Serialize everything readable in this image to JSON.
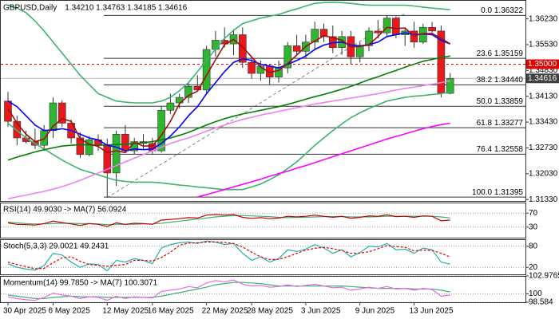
{
  "chart_data": [
    {
      "type": "candlestick",
      "title": "GBPUSD,Daily",
      "subtitle": "1.34210 1.34763 1.34185 1.34616",
      "categories": [
        "30 Apr 2025",
        null,
        null,
        null,
        null,
        "6 May 2025",
        null,
        null,
        null,
        null,
        null,
        "12 May 2025",
        null,
        null,
        null,
        null,
        "16 May 2025",
        null,
        null,
        null,
        null,
        null,
        "22 May 2025",
        null,
        null,
        null,
        null,
        "28 May 2025",
        null,
        null,
        null,
        null,
        null,
        "3 Jun 2025",
        null,
        null,
        null,
        null,
        null,
        "9 Jun 2025",
        null,
        null,
        null,
        null,
        null,
        "13 Jun 2025",
        null,
        null,
        null,
        null
      ],
      "open": [
        1.34,
        1.3345,
        1.33,
        1.329,
        1.328,
        1.332,
        1.3395,
        1.334,
        1.33,
        1.3255,
        1.3295,
        1.328,
        1.3205,
        1.331,
        1.3265,
        1.329,
        1.3285,
        1.3265,
        1.3375,
        1.3395,
        1.341,
        1.344,
        1.343,
        1.354,
        1.3565,
        1.3555,
        1.358,
        1.3505,
        1.3475,
        1.3495,
        1.3465,
        1.349,
        1.355,
        1.3535,
        1.356,
        1.3595,
        1.3575,
        1.3545,
        1.3575,
        1.352,
        1.355,
        1.359,
        1.3585,
        1.3625,
        1.358,
        1.359,
        1.356,
        1.36,
        1.359,
        1.3421
      ],
      "high": [
        1.3425,
        1.336,
        1.332,
        1.3325,
        1.3335,
        1.341,
        1.3402,
        1.335,
        1.3315,
        1.3305,
        1.331,
        1.3298,
        1.332,
        1.3335,
        1.33,
        1.331,
        1.33,
        1.3385,
        1.342,
        1.342,
        1.345,
        1.347,
        1.355,
        1.359,
        1.36,
        1.3595,
        1.36,
        1.352,
        1.351,
        1.35,
        1.351,
        1.356,
        1.358,
        1.358,
        1.3615,
        1.361,
        1.3605,
        1.359,
        1.359,
        1.356,
        1.36,
        1.362,
        1.36322,
        1.363,
        1.36,
        1.3615,
        1.361,
        1.3615,
        1.3605,
        1.34763
      ],
      "low": [
        1.333,
        1.328,
        1.3285,
        1.327,
        1.3265,
        1.33,
        1.333,
        1.3285,
        1.3245,
        1.325,
        1.3265,
        1.31395,
        1.317,
        1.326,
        1.3255,
        1.327,
        1.3255,
        1.326,
        1.3365,
        1.338,
        1.3395,
        1.3425,
        1.342,
        1.352,
        1.3545,
        1.3525,
        1.349,
        1.346,
        1.3455,
        1.3445,
        1.345,
        1.3475,
        1.3525,
        1.3515,
        1.354,
        1.356,
        1.353,
        1.3525,
        1.35,
        1.3505,
        1.3535,
        1.357,
        1.3575,
        1.357,
        1.355,
        1.3545,
        1.3555,
        1.358,
        1.341,
        1.34185
      ],
      "close": [
        1.3345,
        1.33,
        1.329,
        1.328,
        1.332,
        1.3395,
        1.334,
        1.33,
        1.3255,
        1.3295,
        1.328,
        1.3205,
        1.331,
        1.3265,
        1.329,
        1.3285,
        1.3265,
        1.3375,
        1.3395,
        1.341,
        1.344,
        1.343,
        1.354,
        1.3565,
        1.3555,
        1.358,
        1.3505,
        1.3475,
        1.3495,
        1.3465,
        1.349,
        1.355,
        1.3535,
        1.356,
        1.3595,
        1.3575,
        1.3545,
        1.3575,
        1.352,
        1.355,
        1.359,
        1.3585,
        1.3625,
        1.358,
        1.359,
        1.356,
        1.36,
        1.359,
        1.3421,
        1.34616
      ],
      "up_color": "#2fb52f",
      "down_color": "#e8191c",
      "series": [
        {
          "color": "#3cb371",
          "values": [
            1.366,
            1.3652,
            1.364,
            1.3617,
            1.359,
            1.356,
            1.353,
            1.35,
            1.347,
            1.3445,
            1.342,
            1.341,
            1.34,
            1.3397,
            1.3395,
            1.3395,
            1.3395,
            1.34,
            1.341,
            1.3428,
            1.345,
            1.348,
            1.351,
            1.354,
            1.357,
            1.3592,
            1.361,
            1.3618,
            1.3625,
            1.363,
            1.3635,
            1.3643,
            1.365,
            1.3658,
            1.3665,
            1.3667,
            1.3668,
            1.3667,
            1.3665,
            1.3662,
            1.366,
            1.366,
            1.366,
            1.366,
            1.366,
            1.3658,
            1.3655,
            1.3652,
            1.365,
            1.3648
          ]
        },
        {
          "color": "#3cb371",
          "values": [
            1.334,
            1.332,
            1.33,
            1.3285,
            1.327,
            1.3255,
            1.324,
            1.3227,
            1.3215,
            1.3207,
            1.32,
            1.3192,
            1.3185,
            1.3182,
            1.318,
            1.318,
            1.318,
            1.3178,
            1.3175,
            1.3172,
            1.317,
            1.3167,
            1.3165,
            1.3162,
            1.316,
            1.316,
            1.316,
            1.3167,
            1.3175,
            1.3187,
            1.32,
            1.3217,
            1.3235,
            1.3257,
            1.328,
            1.33,
            1.332,
            1.3338,
            1.3355,
            1.3368,
            1.338,
            1.339,
            1.34,
            1.3405,
            1.341,
            1.3413,
            1.3415,
            1.3418,
            1.342,
            1.3425
          ]
        },
        {
          "color": "#ee82ee",
          "values": [
            1.3135,
            1.314,
            1.3145,
            1.315,
            1.3155,
            1.3161,
            1.3168,
            1.3176,
            1.3185,
            1.3195,
            1.3205,
            1.3215,
            1.3225,
            1.3235,
            1.3245,
            1.3255,
            1.3265,
            1.3275,
            1.3285,
            1.3293,
            1.33,
            1.3309,
            1.3318,
            1.3327,
            1.3335,
            1.3343,
            1.335,
            1.3356,
            1.3362,
            1.3367,
            1.3372,
            1.3377,
            1.3382,
            1.3387,
            1.3392,
            1.3396,
            1.34,
            1.3404,
            1.3408,
            1.3412,
            1.3416,
            1.342,
            1.3425,
            1.343,
            1.3434,
            1.3438,
            1.3442,
            1.3446,
            1.345,
            1.3455
          ]
        },
        {
          "color": "#ff00ff",
          "values": [
            null,
            null,
            null,
            null,
            null,
            null,
            null,
            null,
            null,
            null,
            null,
            null,
            null,
            null,
            null,
            null,
            null,
            null,
            null,
            null,
            null,
            1.314,
            1.3146,
            1.3153,
            1.316,
            1.3167,
            1.3174,
            1.3181,
            1.3188,
            1.3196,
            1.3203,
            1.321,
            1.3218,
            1.3225,
            1.3233,
            1.3241,
            1.3249,
            1.3257,
            1.3265,
            1.3273,
            1.3281,
            1.3289,
            1.3297,
            1.3304,
            1.3311,
            1.3318,
            1.3325,
            1.3331,
            1.3336,
            1.334
          ]
        },
        {
          "color": "#008000",
          "values": [
            1.324,
            1.3248,
            1.3255,
            1.3262,
            1.3268,
            1.3273,
            1.3278,
            1.328,
            1.3282,
            1.3281,
            1.328,
            1.3281,
            1.3282,
            1.3283,
            1.3285,
            1.3287,
            1.329,
            1.3295,
            1.33,
            1.3307,
            1.3315,
            1.3325,
            1.3335,
            1.3344,
            1.3352,
            1.3359,
            1.3365,
            1.337,
            1.3375,
            1.338,
            1.3385,
            1.3391,
            1.3398,
            1.3405,
            1.3412,
            1.3418,
            1.3425,
            1.3432,
            1.344,
            1.3449,
            1.3458,
            1.3466,
            1.3475,
            1.3483,
            1.3492,
            1.35,
            1.3508,
            1.3513,
            1.3518,
            1.3522
          ]
        },
        {
          "color": "#0000ff",
          "values": [
            1.34,
            1.3385,
            1.336,
            1.3335,
            1.332,
            1.3322,
            1.3325,
            1.332,
            1.331,
            1.33,
            1.3295,
            1.328,
            1.3275,
            1.3265,
            1.327,
            1.3268,
            1.327,
            1.3285,
            1.3305,
            1.333,
            1.336,
            1.3385,
            1.342,
            1.345,
            1.348,
            1.3505,
            1.3515,
            1.351,
            1.35,
            1.3495,
            1.349,
            1.35,
            1.351,
            1.3522,
            1.354,
            1.3552,
            1.3558,
            1.356,
            1.3552,
            1.355,
            1.3553,
            1.356,
            1.3575,
            1.358,
            1.3585,
            1.358,
            1.3582,
            1.358,
            1.3565,
            1.3555
          ]
        },
        {
          "color": "#a01010",
          "values": [
            1.338,
            1.334,
            1.331,
            1.329,
            1.3297,
            1.3332,
            1.3352,
            1.3345,
            1.3298,
            1.3283,
            1.3277,
            1.326,
            1.3265,
            1.326,
            1.3288,
            1.3278,
            1.3278,
            1.3307,
            1.3345,
            1.3393,
            1.3415,
            1.3427,
            1.347,
            1.3512,
            1.3553,
            1.3567,
            1.3547,
            1.352,
            1.3492,
            1.3478,
            1.3483,
            1.3502,
            1.3525,
            1.3548,
            1.3563,
            1.3577,
            1.3572,
            1.3565,
            1.3547,
            1.3548,
            1.3553,
            1.3575,
            1.36,
            1.3597,
            1.3598,
            1.3577,
            1.3583,
            1.3583,
            1.357,
            1.3555
          ]
        }
      ],
      "levels": [
        {
          "value": 1.36322,
          "label": "0.0 1.36322"
        },
        {
          "value": 1.35159,
          "label": "23.6 1.35159"
        },
        {
          "value": 1.3444,
          "label": "38.2 1.34440"
        },
        {
          "value": 1.33859,
          "label": "50.0 1.33859"
        },
        {
          "value": 1.33277,
          "label": "61.8 1.33277"
        },
        {
          "value": 1.32558,
          "label": "76.4 1.32558"
        },
        {
          "value": 1.31395,
          "label": "100.0 1.31395"
        }
      ],
      "hlines": [
        {
          "value": 1.35,
          "label": "1.35000",
          "color": "#e00000",
          "dashed": true
        },
        {
          "value": 1.34616,
          "label": "1.34616",
          "color": "#404040",
          "dashed": false
        }
      ],
      "ylim": [
        1.3129,
        1.3672
      ],
      "yticks": [
        {
          "value": 1.3623,
          "label": "1.36230"
        },
        {
          "value": 1.3553,
          "label": "1.35530"
        },
        {
          "value": 1.3483,
          "label": "1.34830"
        },
        {
          "value": 1.3413,
          "label": "1.34130"
        },
        {
          "value": 1.3343,
          "label": "1.33430"
        },
        {
          "value": 1.3273,
          "label": "1.32730"
        },
        {
          "value": 1.3203,
          "label": "1.32030"
        },
        {
          "value": 1.3133,
          "label": "1.31330"
        }
      ],
      "grid": false
    },
    {
      "type": "line",
      "title": "RSI(14) 49.9030 -> MA(7) 56.0924",
      "series": [
        {
          "color": "#3cb371",
          "values": [
            44,
            42,
            40,
            39,
            39,
            40,
            41,
            41,
            40,
            40,
            39,
            37,
            38,
            38,
            38,
            39,
            39,
            41,
            44,
            47,
            50,
            53,
            56,
            59,
            61,
            63,
            63,
            62,
            61,
            60,
            58,
            57,
            58,
            58,
            59,
            60,
            60,
            60,
            59,
            59,
            59,
            60,
            61,
            61,
            61,
            61,
            61,
            61,
            59,
            56.0924
          ]
        },
        {
          "color": "#c00000",
          "values": [
            42,
            38,
            37,
            36,
            40,
            47,
            43,
            39,
            35,
            40,
            38,
            32,
            42,
            38,
            41,
            40,
            38,
            50,
            52,
            54,
            57,
            56,
            64,
            66,
            64,
            66,
            58,
            55,
            57,
            54,
            56,
            61,
            59,
            61,
            64,
            61,
            58,
            61,
            55,
            58,
            62,
            61,
            65,
            60,
            61,
            58,
            62,
            61,
            48,
            49.903
          ]
        }
      ],
      "ylim": [
        0,
        100
      ],
      "yticks": [
        70,
        30
      ],
      "grid": true
    },
    {
      "type": "line",
      "title": "Stoch(5,3,3) 29.0021 49.2431",
      "series": [
        {
          "color": "#20b2aa",
          "values": [
            30,
            20,
            15,
            12,
            25,
            60,
            55,
            35,
            20,
            30,
            28,
            10,
            40,
            35,
            45,
            40,
            30,
            75,
            85,
            90,
            92,
            88,
            95,
            92,
            85,
            88,
            60,
            40,
            50,
            35,
            45,
            70,
            65,
            72,
            85,
            75,
            60,
            70,
            50,
            62,
            80,
            78,
            88,
            70,
            72,
            60,
            75,
            70,
            35,
            29.0021
          ]
        },
        {
          "color": "#e00000",
          "dashed": true,
          "values": [
            35,
            28,
            22,
            16,
            17,
            33,
            47,
            50,
            37,
            28,
            26,
            23,
            26,
            28,
            40,
            40,
            38,
            48,
            63,
            83,
            89,
            90,
            92,
            92,
            91,
            88,
            78,
            63,
            50,
            42,
            43,
            50,
            60,
            69,
            74,
            77,
            73,
            68,
            60,
            61,
            64,
            73,
            82,
            79,
            77,
            67,
            69,
            68,
            60,
            49.2431
          ]
        }
      ],
      "ylim": [
        0,
        100
      ],
      "yticks": [
        80,
        20
      ],
      "grid": true
    },
    {
      "type": "line",
      "title": "Momentum(14) 99.7850 -> MA(7) 100.3071",
      "series": [
        {
          "color": "#3cb371",
          "values": [
            99.8,
            99.6,
            99.4,
            99.2,
            99.2,
            99.4,
            99.5,
            99.6,
            99.5,
            99.5,
            99.5,
            99.4,
            99.4,
            99.4,
            99.4,
            99.4,
            99.4,
            99.6,
            99.9,
            100.2,
            100.5,
            100.8,
            101.1,
            101.5,
            101.7,
            101.9,
            101.9,
            101.8,
            101.7,
            101.5,
            101.3,
            101.3,
            101.3,
            101.3,
            101.3,
            101.3,
            101.3,
            101.3,
            101.2,
            101.1,
            101,
            100.9,
            100.9,
            100.9,
            100.9,
            100.8,
            100.8,
            100.8,
            100.6,
            100.3071
          ]
        },
        {
          "color": "#ee66ee",
          "values": [
            99.5,
            99.2,
            99,
            98.9,
            99.4,
            100.1,
            99.8,
            99.6,
            99.2,
            99.5,
            99.4,
            98.9,
            99.6,
            99.2,
            99.5,
            99.4,
            99.3,
            100.4,
            100.6,
            100.8,
            101.2,
            101,
            101.8,
            102.2,
            102,
            102.3,
            101.6,
            101.3,
            101.4,
            101.1,
            101.2,
            101.5,
            101.2,
            101.4,
            101.6,
            101.3,
            101,
            101.1,
            100.6,
            100.8,
            101.1,
            100.9,
            101.2,
            100.8,
            100.9,
            100.6,
            100.9,
            100.7,
            99.6,
            99.785
          ]
        }
      ],
      "ylim": [
        98.584,
        102.9765
      ],
      "yticks": [
        102.9765,
        100,
        98.584
      ],
      "grid": true
    }
  ]
}
